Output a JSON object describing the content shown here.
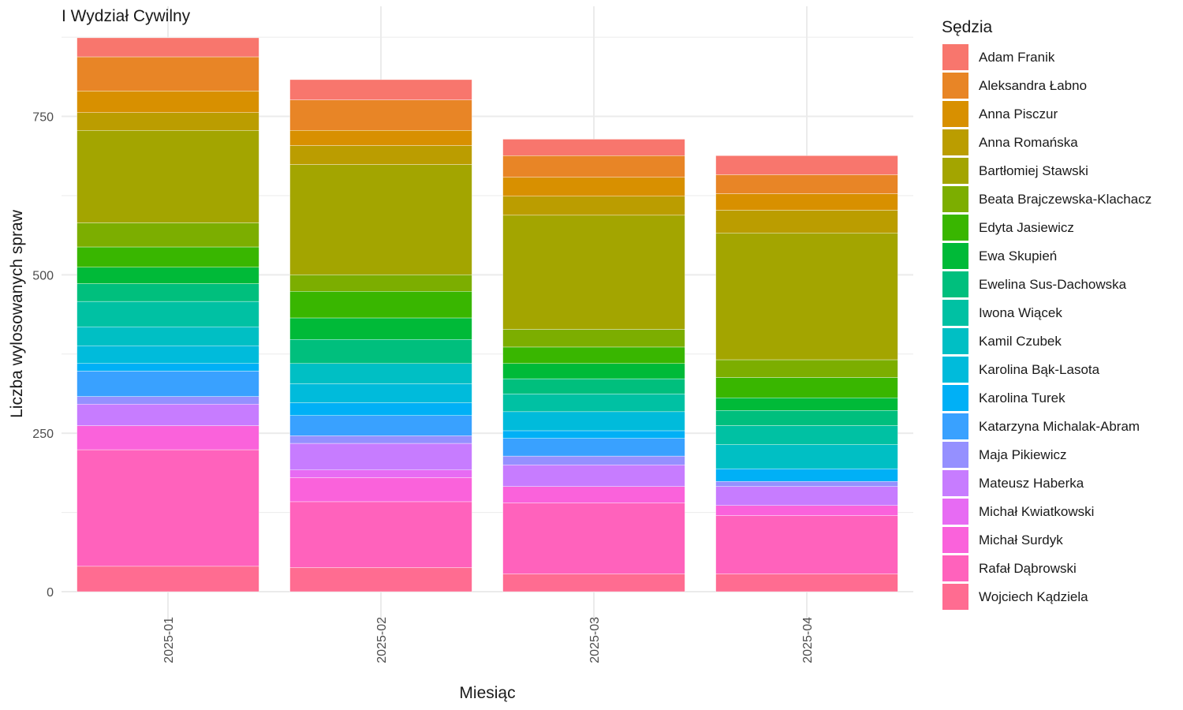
{
  "chart_data": {
    "type": "bar",
    "stacked": true,
    "title": "I Wydział Cywilny",
    "xlabel": "Miesiąc",
    "ylabel": "Liczba wylosowanych spraw",
    "legend_title": "Sędzia",
    "legend_position": "right",
    "grid": true,
    "ylim": [
      0,
      875
    ],
    "yticks": [
      0,
      250,
      500,
      750
    ],
    "categories": [
      "2025-01",
      "2025-02",
      "2025-03",
      "2025-04"
    ],
    "series": [
      {
        "name": "Wojciech Kądziela",
        "color": "#FF6C91",
        "values": [
          40,
          38,
          28,
          28
        ]
      },
      {
        "name": "Rafał Dąbrowski",
        "color": "#FF62BC",
        "values": [
          184,
          104,
          112,
          92
        ]
      },
      {
        "name": "Michał Surdyk",
        "color": "#FA62DB",
        "values": [
          38,
          38,
          26,
          16
        ]
      },
      {
        "name": "Michał Kwiatkowski",
        "color": "#E76BF3",
        "values": [
          0,
          12,
          0,
          0
        ]
      },
      {
        "name": "Mateusz Haberka",
        "color": "#C77CFF",
        "values": [
          34,
          42,
          34,
          30
        ]
      },
      {
        "name": "Maja Pikiewicz",
        "color": "#9590FF",
        "values": [
          12,
          12,
          14,
          8
        ]
      },
      {
        "name": "Katarzyna Michalak-Abram",
        "color": "#39A1FF",
        "values": [
          40,
          32,
          28,
          0
        ]
      },
      {
        "name": "Karolina Turek",
        "color": "#00B0F6",
        "values": [
          12,
          20,
          12,
          20
        ]
      },
      {
        "name": "Karolina Bąk-Lasota",
        "color": "#00BBDB",
        "values": [
          28,
          30,
          30,
          0
        ]
      },
      {
        "name": "Kamil Czubek",
        "color": "#00BFC4",
        "values": [
          30,
          32,
          0,
          38
        ]
      },
      {
        "name": "Iwona Wiącek",
        "color": "#00C1A3",
        "values": [
          40,
          0,
          28,
          30
        ]
      },
      {
        "name": "Ewelina Sus-Dachowska",
        "color": "#00BF7D",
        "values": [
          28,
          38,
          24,
          24
        ]
      },
      {
        "name": "Ewa Skupień",
        "color": "#00BA38",
        "values": [
          26,
          34,
          24,
          20
        ]
      },
      {
        "name": "Edyta Jasiewicz",
        "color": "#39B600",
        "values": [
          32,
          42,
          26,
          32
        ]
      },
      {
        "name": "Beata Brajczewska-Klachacz",
        "color": "#7CAE00",
        "values": [
          38,
          26,
          28,
          28
        ]
      },
      {
        "name": "Bartłomiej Stawski",
        "color": "#A3A500",
        "values": [
          146,
          174,
          180,
          200
        ]
      },
      {
        "name": "Anna Romańska",
        "color": "#BB9D00",
        "values": [
          28,
          30,
          30,
          36
        ]
      },
      {
        "name": "Anna Pisczur",
        "color": "#D89000",
        "values": [
          34,
          24,
          30,
          26
        ]
      },
      {
        "name": "Aleksandra Łabno",
        "color": "#E88526",
        "values": [
          54,
          48,
          34,
          30
        ]
      },
      {
        "name": "Adam Franik",
        "color": "#F8766D",
        "values": [
          30,
          32,
          26,
          30
        ]
      }
    ]
  }
}
